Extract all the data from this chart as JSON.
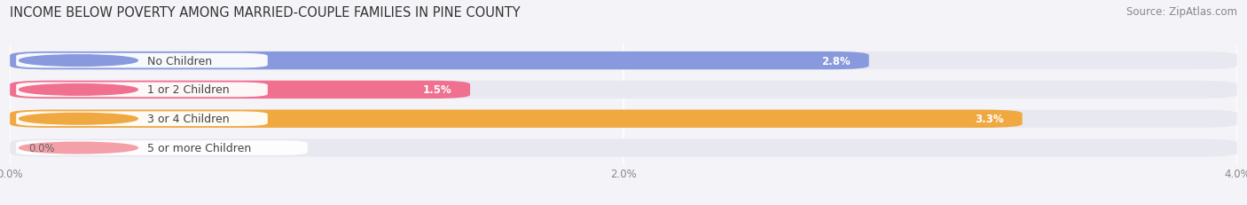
{
  "title": "INCOME BELOW POVERTY AMONG MARRIED-COUPLE FAMILIES IN PINE COUNTY",
  "source": "Source: ZipAtlas.com",
  "categories": [
    "No Children",
    "1 or 2 Children",
    "3 or 4 Children",
    "5 or more Children"
  ],
  "values": [
    2.8,
    1.5,
    3.3,
    0.0
  ],
  "value_labels": [
    "2.8%",
    "1.5%",
    "3.3%",
    "0.0%"
  ],
  "bar_colors": [
    "#8899dd",
    "#f07090",
    "#f0a840",
    "#f4a0a8"
  ],
  "dot_colors": [
    "#8899dd",
    "#f07090",
    "#f0a840",
    "#f4a0a8"
  ],
  "xlim": [
    0,
    4.0
  ],
  "xticks": [
    0.0,
    2.0,
    4.0
  ],
  "xtick_labels": [
    "0.0%",
    "2.0%",
    "4.0%"
  ],
  "bg_bar_color": "#e8e8f0",
  "bg_color": "#f4f4f8",
  "title_fontsize": 10.5,
  "source_fontsize": 8.5,
  "label_fontsize": 9,
  "value_fontsize": 8.5,
  "value_inside_threshold": 0.4
}
